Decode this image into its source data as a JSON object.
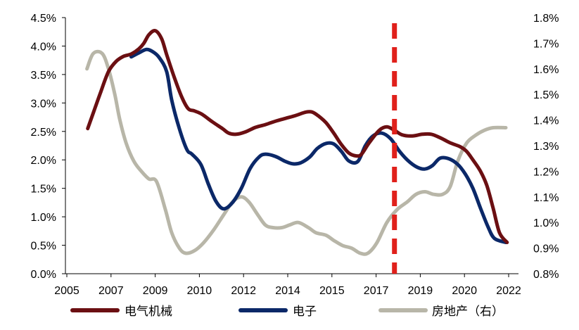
{
  "chart_data": {
    "type": "line",
    "title": "",
    "xlabel": "",
    "ylabel": "",
    "x_ticks": [
      "2005",
      "2007",
      "2009",
      "2010",
      "2012",
      "2014",
      "2015",
      "2017",
      "2019",
      "2020",
      "2022"
    ],
    "ylim_left": [
      0,
      4.5
    ],
    "ylim_right": [
      0.8,
      1.8
    ],
    "y_ticks_left": [
      "0.0%",
      "0.5%",
      "1.0%",
      "1.5%",
      "2.0%",
      "2.5%",
      "3.0%",
      "3.5%",
      "4.0%",
      "4.5%"
    ],
    "y_ticks_right": [
      "0.8%",
      "0.9%",
      "1.0%",
      "1.1%",
      "1.2%",
      "1.3%",
      "1.4%",
      "1.5%",
      "1.6%",
      "1.7%",
      "1.8%"
    ],
    "grid": false,
    "legend_position": "bottom",
    "annotation": {
      "type": "vertical-dashed-line",
      "x": 2018.0,
      "color": "#e0201b"
    },
    "series": [
      {
        "name": "电气机械",
        "axis": "left",
        "color": "#6b0f12",
        "points": [
          [
            2005.88,
            2.55
          ],
          [
            2006.12,
            2.85
          ],
          [
            2006.4,
            3.2
          ],
          [
            2006.7,
            3.55
          ],
          [
            2007.0,
            3.73
          ],
          [
            2007.3,
            3.82
          ],
          [
            2007.6,
            3.86
          ],
          [
            2007.9,
            3.95
          ],
          [
            2008.1,
            4.05
          ],
          [
            2008.3,
            4.2
          ],
          [
            2008.55,
            4.27
          ],
          [
            2008.8,
            4.13
          ],
          [
            2009.0,
            3.85
          ],
          [
            2009.3,
            3.45
          ],
          [
            2009.6,
            3.1
          ],
          [
            2009.85,
            2.9
          ],
          [
            2010.1,
            2.86
          ],
          [
            2010.4,
            2.8
          ],
          [
            2010.8,
            2.67
          ],
          [
            2011.2,
            2.55
          ],
          [
            2011.45,
            2.47
          ],
          [
            2011.75,
            2.45
          ],
          [
            2012.1,
            2.49
          ],
          [
            2012.5,
            2.57
          ],
          [
            2012.9,
            2.62
          ],
          [
            2013.3,
            2.68
          ],
          [
            2013.7,
            2.73
          ],
          [
            2014.1,
            2.78
          ],
          [
            2014.5,
            2.84
          ],
          [
            2014.75,
            2.84
          ],
          [
            2015.0,
            2.77
          ],
          [
            2015.3,
            2.65
          ],
          [
            2015.6,
            2.47
          ],
          [
            2015.9,
            2.27
          ],
          [
            2016.2,
            2.12
          ],
          [
            2016.5,
            2.07
          ],
          [
            2016.7,
            2.1
          ],
          [
            2017.0,
            2.3
          ],
          [
            2017.4,
            2.52
          ],
          [
            2017.7,
            2.58
          ],
          [
            2018.0,
            2.52
          ],
          [
            2018.3,
            2.44
          ],
          [
            2018.7,
            2.42
          ],
          [
            2019.1,
            2.45
          ],
          [
            2019.45,
            2.45
          ],
          [
            2019.8,
            2.39
          ],
          [
            2020.2,
            2.3
          ],
          [
            2020.6,
            2.23
          ],
          [
            2020.85,
            2.15
          ],
          [
            2021.1,
            2.0
          ],
          [
            2021.4,
            1.8
          ],
          [
            2021.65,
            1.55
          ],
          [
            2021.9,
            1.15
          ],
          [
            2022.15,
            0.72
          ],
          [
            2022.45,
            0.55
          ]
        ]
      },
      {
        "name": "电子",
        "axis": "left",
        "color": "#0b2868",
        "points": [
          [
            2007.6,
            3.81
          ],
          [
            2007.9,
            3.88
          ],
          [
            2008.2,
            3.94
          ],
          [
            2008.45,
            3.9
          ],
          [
            2008.7,
            3.8
          ],
          [
            2009.0,
            3.55
          ],
          [
            2009.2,
            3.05
          ],
          [
            2009.5,
            2.55
          ],
          [
            2009.8,
            2.18
          ],
          [
            2010.0,
            2.1
          ],
          [
            2010.35,
            1.92
          ],
          [
            2010.65,
            1.57
          ],
          [
            2010.95,
            1.27
          ],
          [
            2011.25,
            1.14
          ],
          [
            2011.6,
            1.25
          ],
          [
            2011.95,
            1.5
          ],
          [
            2012.3,
            1.85
          ],
          [
            2012.65,
            2.05
          ],
          [
            2012.9,
            2.1
          ],
          [
            2013.3,
            2.06
          ],
          [
            2013.7,
            1.97
          ],
          [
            2014.0,
            1.93
          ],
          [
            2014.3,
            1.95
          ],
          [
            2014.65,
            2.05
          ],
          [
            2014.95,
            2.2
          ],
          [
            2015.3,
            2.29
          ],
          [
            2015.6,
            2.28
          ],
          [
            2015.9,
            2.15
          ],
          [
            2016.2,
            1.98
          ],
          [
            2016.55,
            1.97
          ],
          [
            2016.85,
            2.25
          ],
          [
            2017.15,
            2.42
          ],
          [
            2017.5,
            2.47
          ],
          [
            2017.85,
            2.37
          ],
          [
            2018.2,
            2.15
          ],
          [
            2018.55,
            1.98
          ],
          [
            2018.9,
            1.87
          ],
          [
            2019.2,
            1.84
          ],
          [
            2019.5,
            1.9
          ],
          [
            2019.8,
            2.03
          ],
          [
            2020.15,
            2.02
          ],
          [
            2020.5,
            1.92
          ],
          [
            2020.8,
            1.75
          ],
          [
            2021.1,
            1.5
          ],
          [
            2021.4,
            1.15
          ],
          [
            2021.7,
            0.82
          ],
          [
            2021.95,
            0.62
          ],
          [
            2022.4,
            0.55
          ]
        ]
      },
      {
        "name": "房地产（右）",
        "axis": "right",
        "color": "#b8b6a8",
        "points": [
          [
            2005.85,
            1.6
          ],
          [
            2006.1,
            1.66
          ],
          [
            2006.45,
            1.66
          ],
          [
            2006.7,
            1.6
          ],
          [
            2006.95,
            1.5
          ],
          [
            2007.15,
            1.4
          ],
          [
            2007.4,
            1.31
          ],
          [
            2007.7,
            1.24
          ],
          [
            2008.0,
            1.2
          ],
          [
            2008.3,
            1.17
          ],
          [
            2008.6,
            1.16
          ],
          [
            2008.95,
            1.05
          ],
          [
            2009.2,
            0.96
          ],
          [
            2009.5,
            0.9
          ],
          [
            2009.75,
            0.88
          ],
          [
            2010.1,
            0.89
          ],
          [
            2010.45,
            0.92
          ],
          [
            2010.85,
            0.97
          ],
          [
            2011.25,
            1.03
          ],
          [
            2011.6,
            1.08
          ],
          [
            2011.95,
            1.1
          ],
          [
            2012.25,
            1.08
          ],
          [
            2012.6,
            1.03
          ],
          [
            2012.9,
            0.99
          ],
          [
            2013.2,
            0.98
          ],
          [
            2013.55,
            0.98
          ],
          [
            2013.85,
            0.99
          ],
          [
            2014.2,
            1.0
          ],
          [
            2014.6,
            0.98
          ],
          [
            2014.9,
            0.96
          ],
          [
            2015.3,
            0.95
          ],
          [
            2015.6,
            0.93
          ],
          [
            2015.95,
            0.91
          ],
          [
            2016.3,
            0.9
          ],
          [
            2016.65,
            0.88
          ],
          [
            2016.95,
            0.88
          ],
          [
            2017.3,
            0.92
          ],
          [
            2017.7,
            1.0
          ],
          [
            2018.1,
            1.05
          ],
          [
            2018.5,
            1.08
          ],
          [
            2018.85,
            1.11
          ],
          [
            2019.2,
            1.12
          ],
          [
            2019.55,
            1.11
          ],
          [
            2019.9,
            1.11
          ],
          [
            2020.2,
            1.14
          ],
          [
            2020.5,
            1.24
          ],
          [
            2020.85,
            1.31
          ],
          [
            2021.2,
            1.34
          ],
          [
            2021.55,
            1.36
          ],
          [
            2021.9,
            1.37
          ],
          [
            2022.4,
            1.37
          ]
        ]
      }
    ]
  }
}
